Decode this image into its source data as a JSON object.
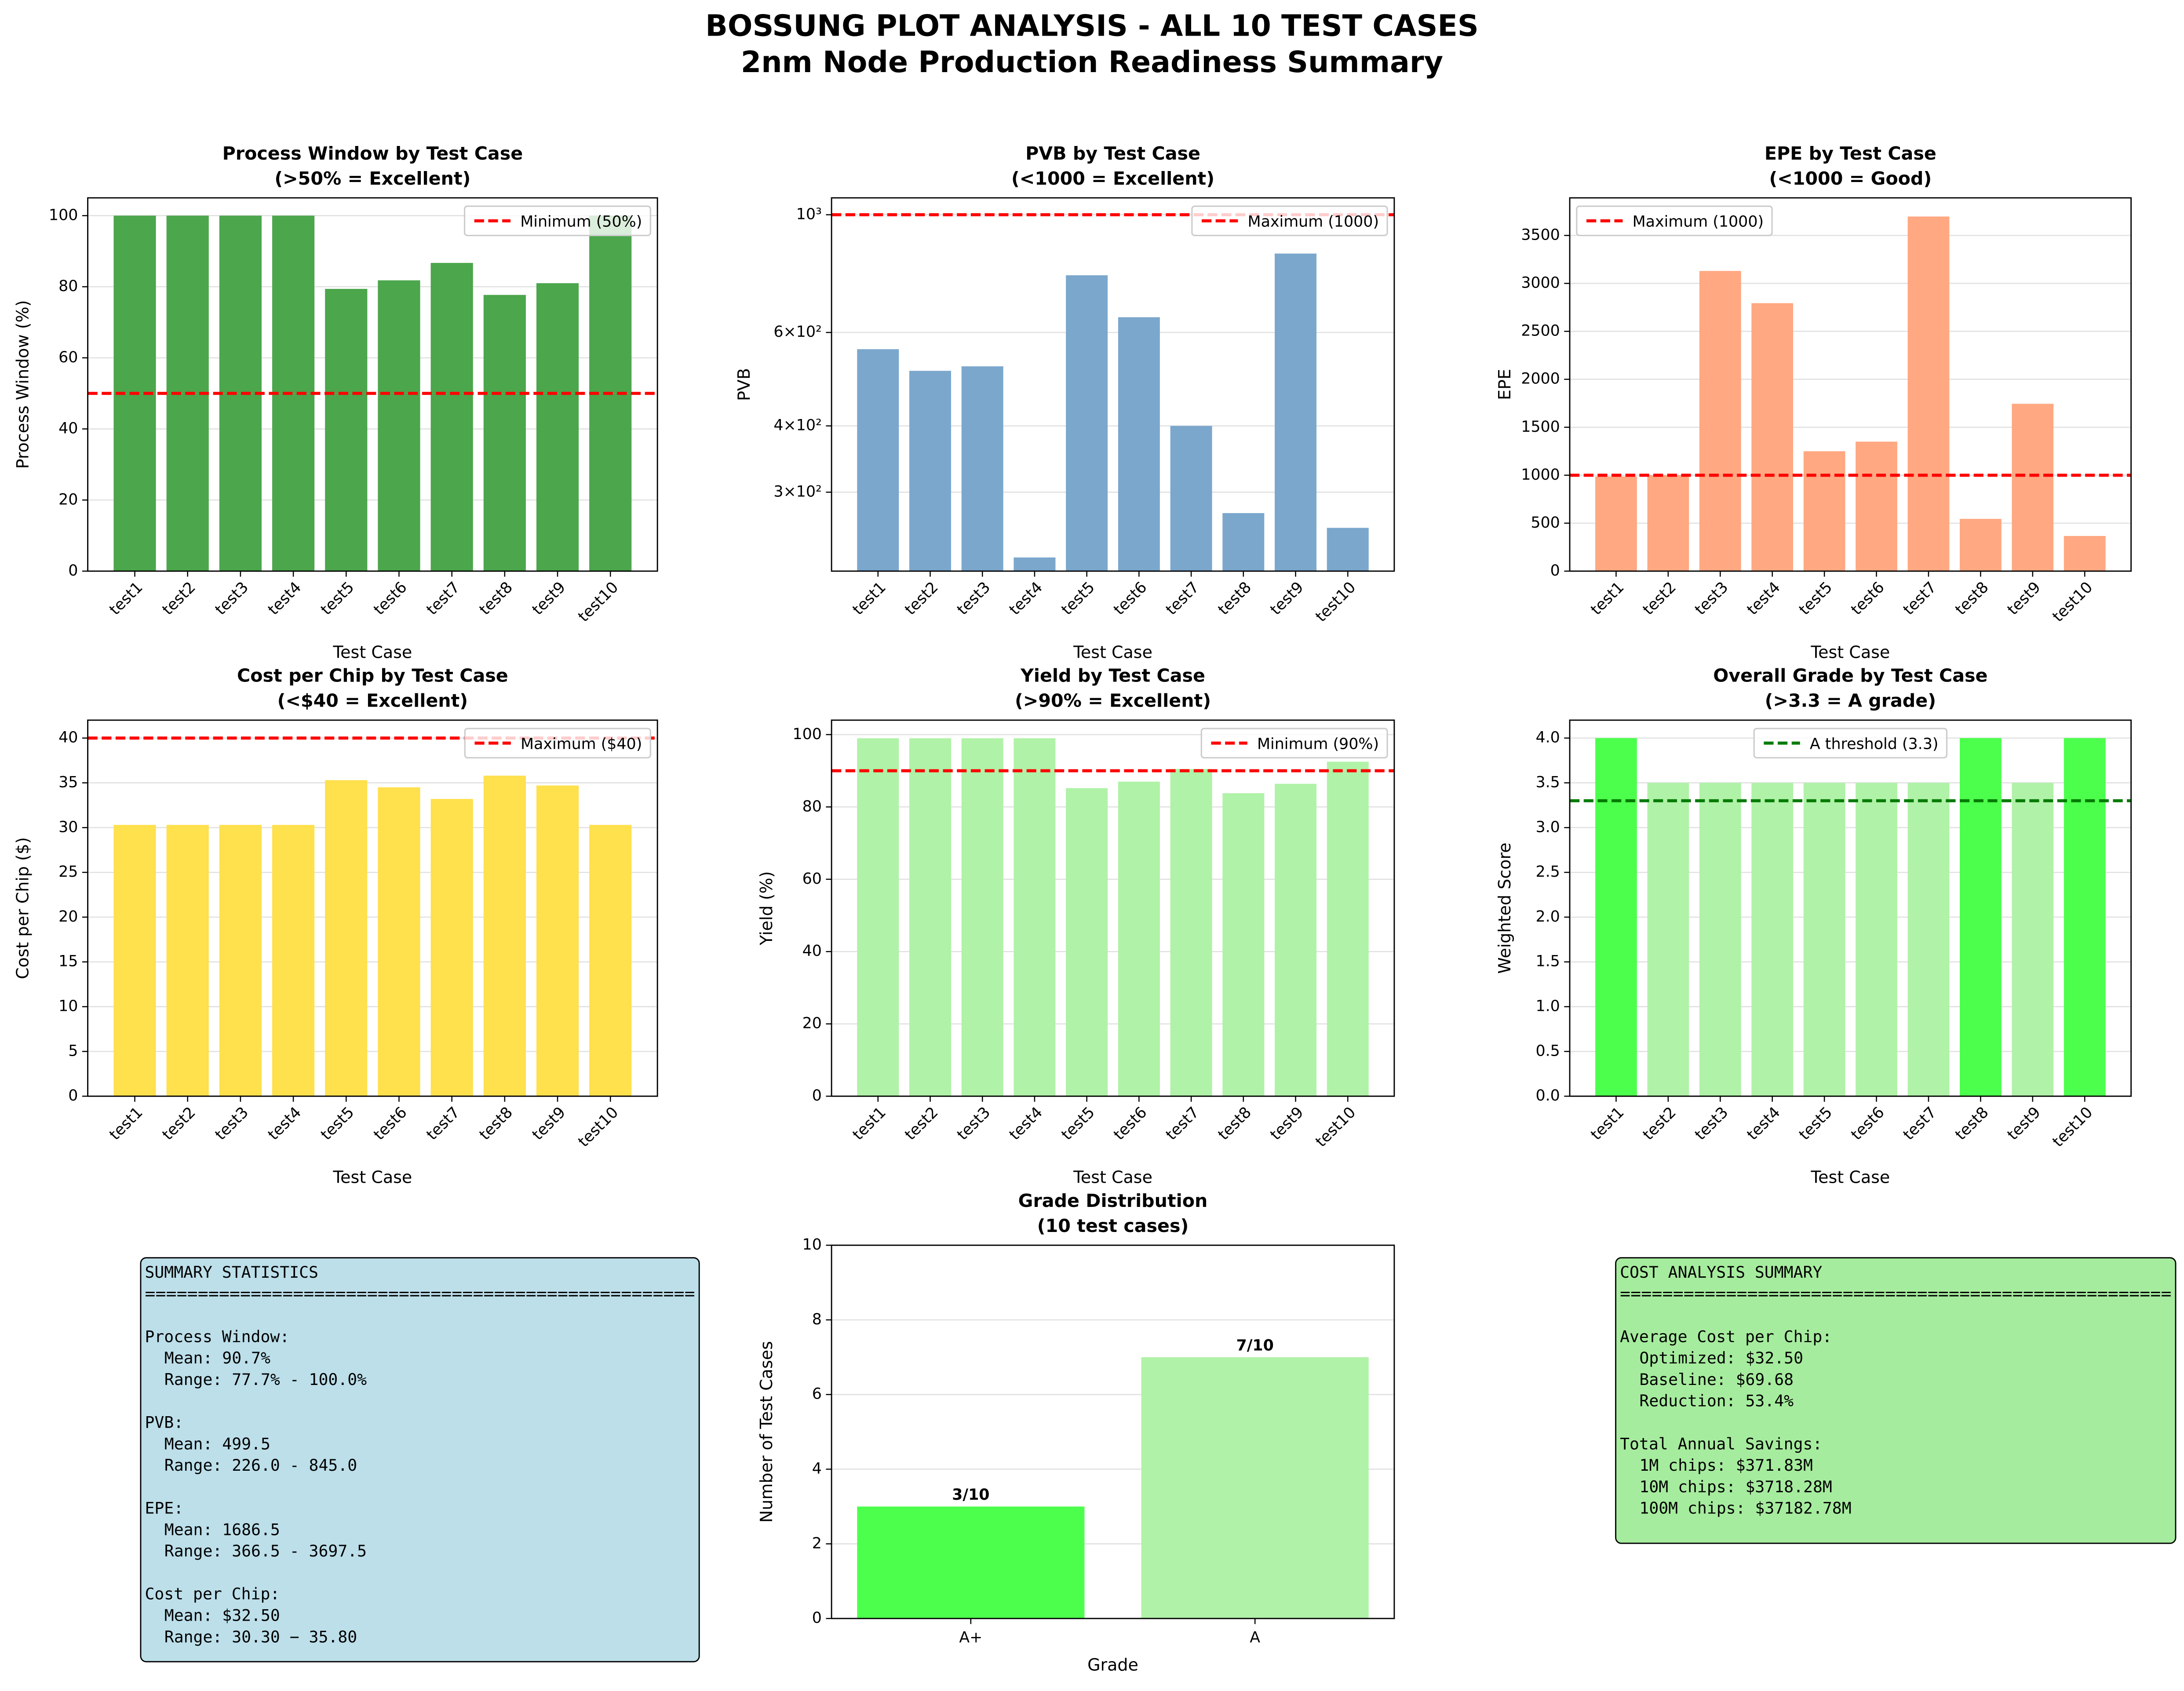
{
  "figure_title": "BOSSUNG PLOT ANALYSIS - ALL 10 TEST CASES",
  "figure_subtitle": "2nm Node Production Readiness Summary",
  "chart_data": [
    {
      "type": "bar",
      "title": "Process Window by Test Case",
      "subtitle": "(>50% = Excellent)",
      "x_label": "Test Case",
      "y_label": "Process Window (%)",
      "categories": [
        "test1",
        "test2",
        "test3",
        "test4",
        "test5",
        "test6",
        "test7",
        "test8",
        "test9",
        "test10"
      ],
      "values": [
        100,
        100,
        100,
        100,
        79.4,
        81.8,
        86.7,
        77.7,
        81.0,
        100
      ],
      "color": "#4ca64c",
      "ylim": [
        0,
        105
      ],
      "yticks": [
        0,
        20,
        40,
        60,
        80,
        100
      ],
      "grid": true,
      "hline": {
        "value": 50,
        "label": "Minimum (50%)",
        "color": "#ff0000"
      },
      "legend": "upper right"
    },
    {
      "type": "bar",
      "title": "PVB by Test Case",
      "subtitle": "(<1000 = Excellent)",
      "x_label": "Test Case",
      "y_label": "PVB",
      "log_scale": true,
      "categories": [
        "test1",
        "test2",
        "test3",
        "test4",
        "test5",
        "test6",
        "test7",
        "test8",
        "test9",
        "test10"
      ],
      "values": [
        558,
        508,
        518,
        226,
        769,
        641,
        400,
        274,
        845,
        257
      ],
      "color": "#7ba7cc",
      "ylim": [
        213,
        1076
      ],
      "yticks": [
        {
          "value": 300,
          "label": "3×10²"
        },
        {
          "value": 400,
          "label": "4×10²"
        },
        {
          "value": 600,
          "label": "6×10²"
        },
        {
          "value": 1000,
          "label": "10³"
        }
      ],
      "grid": true,
      "hline": {
        "value": 1000,
        "label": "Maximum (1000)",
        "color": "#ff0000"
      },
      "legend": "upper right"
    },
    {
      "type": "bar",
      "title": "EPE by Test Case",
      "subtitle": "(<1000 = Good)",
      "x_label": "Test Case",
      "y_label": "EPE",
      "categories": [
        "test1",
        "test2",
        "test3",
        "test4",
        "test5",
        "test6",
        "test7",
        "test8",
        "test9",
        "test10"
      ],
      "values": [
        987,
        1000,
        3130,
        2794,
        1250,
        1350,
        3697.5,
        545,
        1745,
        366.5
      ],
      "color": "#ffa882",
      "ylim": [
        0,
        3892
      ],
      "yticks": [
        0,
        500,
        1000,
        1500,
        2000,
        2500,
        3000,
        3500
      ],
      "grid": true,
      "hline": {
        "value": 1000,
        "label": "Maximum (1000)",
        "color": "#ff0000"
      },
      "legend": "upper left"
    },
    {
      "type": "bar",
      "title": "Cost per Chip by Test Case",
      "subtitle": "(<$40 = Excellent)",
      "x_label": "Test Case",
      "y_label": "Cost per Chip ($)",
      "categories": [
        "test1",
        "test2",
        "test3",
        "test4",
        "test5",
        "test6",
        "test7",
        "test8",
        "test9",
        "test10"
      ],
      "values": [
        30.3,
        30.3,
        30.3,
        30.3,
        35.3,
        34.5,
        33.2,
        35.8,
        34.7,
        30.3
      ],
      "color": "#ffe04d",
      "ylim": [
        0,
        42
      ],
      "yticks": [
        0,
        5,
        10,
        15,
        20,
        25,
        30,
        35,
        40
      ],
      "grid": true,
      "hline": {
        "value": 40,
        "label": "Maximum ($40)",
        "color": "#ff0000"
      },
      "legend": "upper right"
    },
    {
      "type": "bar",
      "title": "Yield by Test Case",
      "subtitle": "(>90% = Excellent)",
      "x_label": "Test Case",
      "y_label": "Yield (%)",
      "categories": [
        "test1",
        "test2",
        "test3",
        "test4",
        "test5",
        "test6",
        "test7",
        "test8",
        "test9",
        "test10"
      ],
      "values": [
        99,
        99,
        99,
        99,
        85.2,
        87.0,
        90.5,
        83.8,
        86.4,
        92.5
      ],
      "color": "#b0f2a8",
      "ylim": [
        0,
        104
      ],
      "yticks": [
        0,
        20,
        40,
        60,
        80,
        100
      ],
      "grid": true,
      "hline": {
        "value": 90,
        "label": "Minimum (90%)",
        "color": "#ff0000"
      },
      "legend": "upper right"
    },
    {
      "type": "bar",
      "title": "Overall Grade by Test Case",
      "subtitle": "(>3.3 = A grade)",
      "x_label": "Test Case",
      "y_label": "Weighted Score",
      "categories": [
        "test1",
        "test2",
        "test3",
        "test4",
        "test5",
        "test6",
        "test7",
        "test8",
        "test9",
        "test10"
      ],
      "values": [
        4.0,
        3.5,
        3.5,
        3.5,
        3.5,
        3.5,
        3.5,
        4.0,
        3.5,
        4.0
      ],
      "colors": [
        "#4dff4d",
        "#b0f2a8",
        "#b0f2a8",
        "#b0f2a8",
        "#b0f2a8",
        "#b0f2a8",
        "#b0f2a8",
        "#4dff4d",
        "#b0f2a8",
        "#4dff4d"
      ],
      "ylim": [
        0,
        4.2
      ],
      "yticks": [
        {
          "value": 0,
          "label": "0.0"
        },
        0.5,
        {
          "value": 1,
          "label": "1.0"
        },
        1.5,
        {
          "value": 2,
          "label": "2.0"
        },
        2.5,
        {
          "value": 3,
          "label": "3.0"
        },
        3.5,
        {
          "value": 4,
          "label": "4.0"
        }
      ],
      "grid": true,
      "hline": {
        "value": 3.3,
        "label": "A threshold (3.3)",
        "color": "#007a00"
      },
      "legend": "upper center"
    },
    {
      "type": "bar",
      "title": "Grade Distribution",
      "subtitle": "(10 test cases)",
      "x_label": "Grade",
      "y_label": "Number of Test Cases",
      "categories": [
        "A+",
        "A"
      ],
      "values": [
        3,
        7
      ],
      "value_labels": [
        "3/10",
        "7/10"
      ],
      "colors": [
        "#4dff4d",
        "#b0f2a8"
      ],
      "ylim": [
        0,
        10
      ],
      "yticks": [
        0,
        2,
        4,
        6,
        8,
        10
      ],
      "grid": true
    }
  ],
  "panels": [
    {
      "title": "SUMMARY STATISTICS",
      "rule": "====================================================",
      "color": "#bcdfea",
      "sections": [
        {
          "heading": "Process Window:",
          "items": [
            "Mean: 90.7%",
            "Range: 77.7% - 100.0%"
          ]
        },
        {
          "heading": "PVB:",
          "items": [
            "Mean: 499.5",
            "Range: 226.0 - 845.0"
          ]
        },
        {
          "heading": "EPE:",
          "items": [
            "Mean: 1686.5",
            "Range: 366.5 - 3697.5"
          ]
        },
        {
          "heading": "Cost per Chip:",
          "items": [
            "Mean: $32.50",
            "Range: 30.30 − 35.80"
          ]
        }
      ]
    },
    {
      "title": "COST ANALYSIS SUMMARY",
      "rule": "====================================================",
      "color": "#a6ec9e",
      "sections": [
        {
          "heading": "Average Cost per Chip:",
          "items": [
            "Optimized: $32.50",
            "Baseline: $69.68",
            "Reduction: 53.4%"
          ]
        },
        {
          "heading": "Total Annual Savings:",
          "items": [
            "1M chips: $371.83M",
            "10M chips: $3718.28M",
            "100M chips: $37182.78M"
          ]
        }
      ]
    }
  ]
}
